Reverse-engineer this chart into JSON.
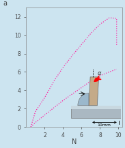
{
  "background_color": "#cce4f0",
  "plot_bg_color": "#cce4f0",
  "line_color": "#ff20a0",
  "upper_line_x": [
    0.5,
    1.0,
    2.0,
    3.0,
    4.0,
    5.0,
    6.0,
    7.0,
    8.0,
    9.0,
    9.8,
    9.8
  ],
  "upper_line_y": [
    0.0,
    1.7,
    3.2,
    5.0,
    6.5,
    7.8,
    9.0,
    10.2,
    11.2,
    11.9,
    11.85,
    8.9
  ],
  "lower_line_x": [
    0.5,
    1.0,
    2.0,
    3.0,
    4.0,
    5.0,
    6.0,
    7.0,
    8.0,
    9.0,
    9.8
  ],
  "lower_line_y": [
    0.0,
    0.5,
    1.3,
    2.1,
    2.9,
    3.6,
    4.3,
    5.0,
    5.6,
    6.0,
    6.3
  ],
  "xlim": [
    0,
    10.4
  ],
  "ylim": [
    0,
    13
  ],
  "xticks": [
    2,
    4,
    6,
    8,
    10
  ],
  "yticks": [
    0,
    2,
    4,
    6,
    8,
    10,
    12
  ],
  "xlabel": "N",
  "ylabel": "a",
  "tick_fontsize": 5.5,
  "label_fontsize": 7,
  "linewidth": 0.9,
  "linestyle": "dotted",
  "spine_color": "#888888",
  "tick_color": "#444444"
}
